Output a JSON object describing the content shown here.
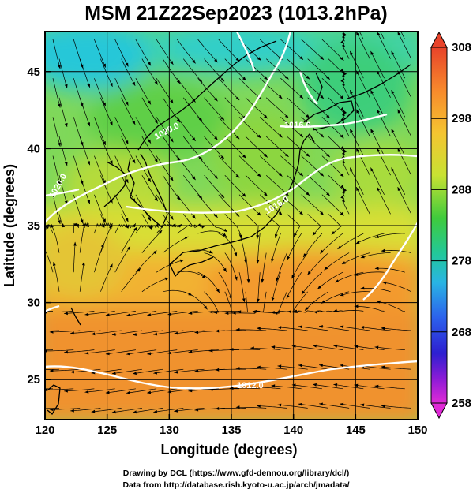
{
  "title": "MSM 21Z22Sep2023 (1013.2hPa)",
  "xlabel": "Longitude (degrees)",
  "ylabel": "Latitude  (degrees)",
  "x_ticks": [
    "120",
    "125",
    "130",
    "135",
    "140",
    "145",
    "150"
  ],
  "y_ticks": [
    "25",
    "30",
    "35",
    "40",
    "45"
  ],
  "colorbar": {
    "ticks": [
      "308",
      "298",
      "288",
      "278",
      "268",
      "258"
    ],
    "range": [
      258,
      308
    ]
  },
  "isobar_labels": [
    "1020.0",
    "1016.0",
    "1016.0",
    "1020.0",
    "1012.0"
  ],
  "credits": [
    "Drawing by DCL (https://www.gfd-dennou.org/library/dcl/)",
    "Data from http://database.rish.kyoto-u.ac.jp/arch/jmadata/"
  ],
  "chart_data": {
    "type": "heatmap",
    "x_range": [
      120,
      150
    ],
    "y_range": [
      22.4,
      47.6
    ],
    "x_tick_values": [
      120,
      125,
      130,
      135,
      140,
      145,
      150
    ],
    "y_tick_values": [
      25,
      30,
      35,
      40,
      45
    ],
    "grid": true,
    "colorbar_position": "right",
    "overlays": [
      "streamlines",
      "isobars",
      "coastlines"
    ]
  }
}
